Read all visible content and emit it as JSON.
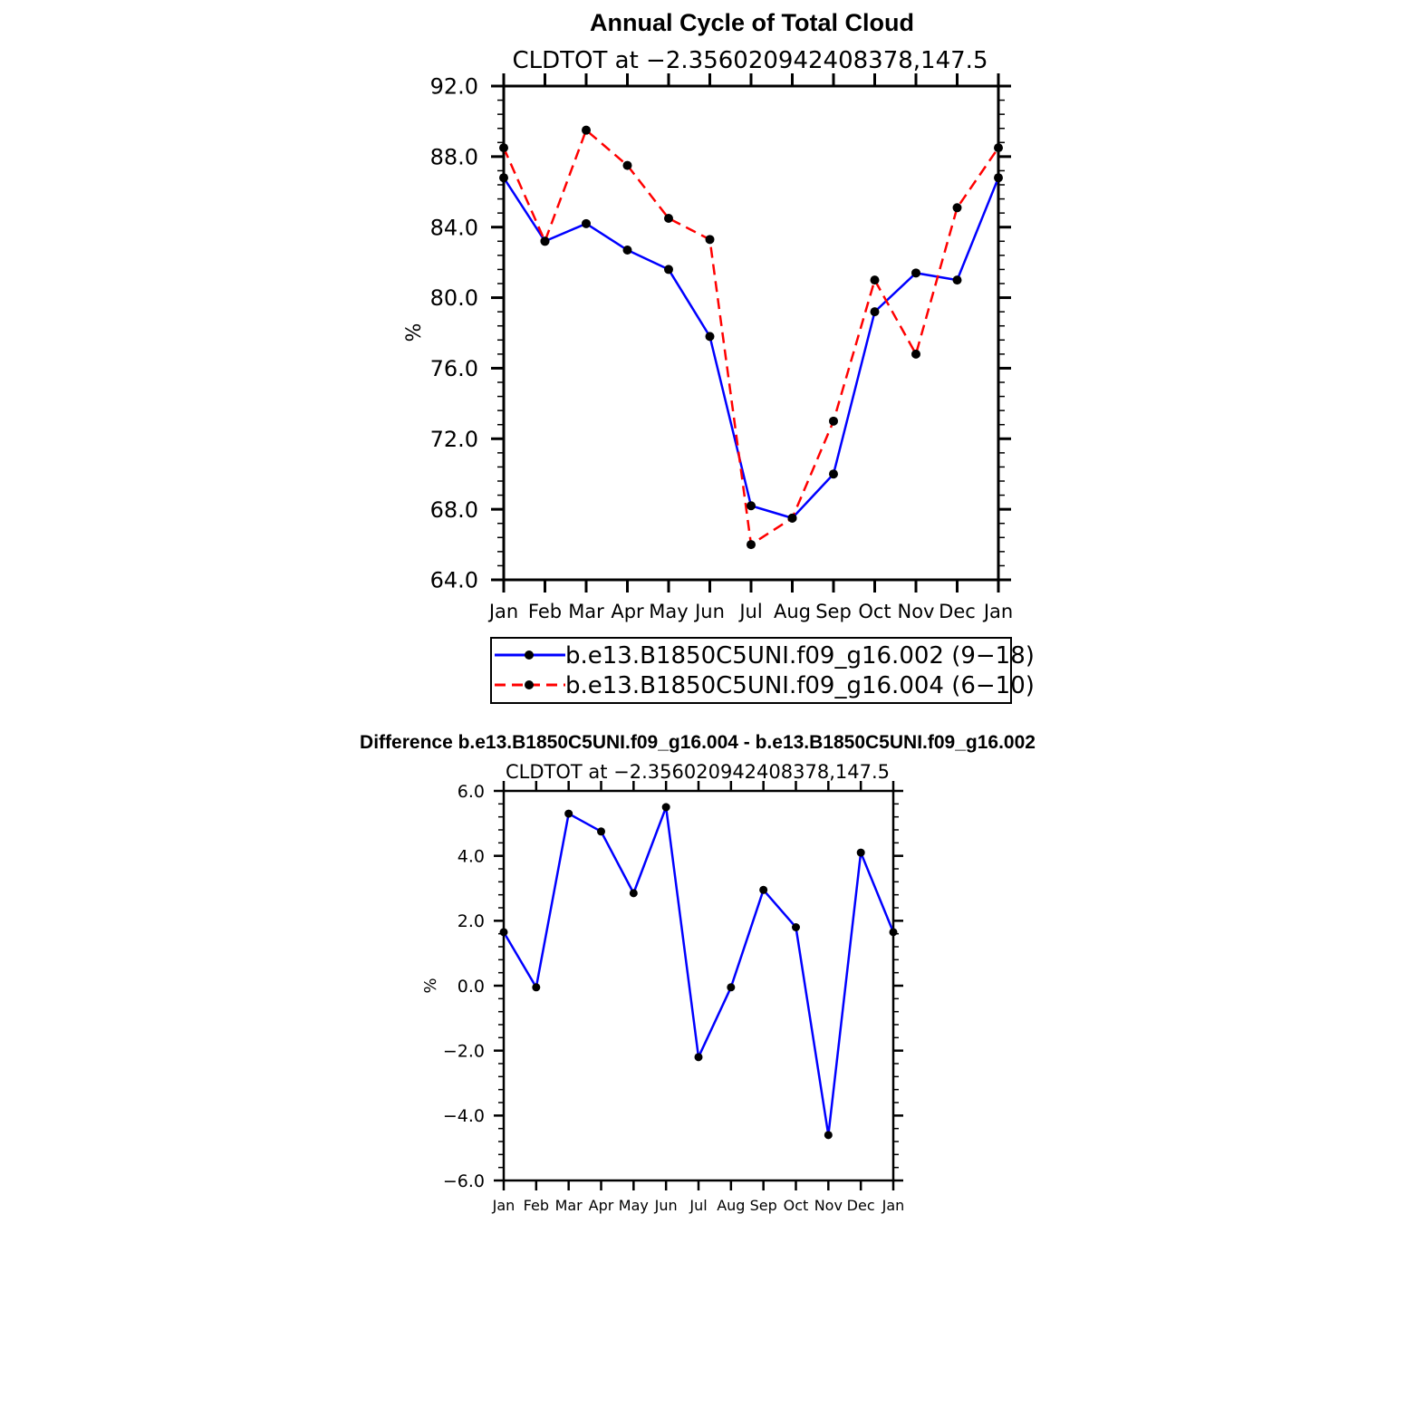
{
  "chart_data": [
    {
      "type": "line",
      "title": "Annual Cycle of Total Cloud",
      "subtitle": "CLDTOT at −2.356020942408378,147.5",
      "xlabel": "",
      "ylabel": "%",
      "categories": [
        "Jan",
        "Feb",
        "Mar",
        "Apr",
        "May",
        "Jun",
        "Jul",
        "Aug",
        "Sep",
        "Oct",
        "Nov",
        "Dec",
        "Jan"
      ],
      "ylim": [
        64.0,
        92.0
      ],
      "yticks": [
        "64.0",
        "68.0",
        "72.0",
        "76.0",
        "80.0",
        "84.0",
        "88.0",
        "92.0"
      ],
      "series": [
        {
          "name": "b.e13.B1850C5UNI.f09_g16.002 (9−18)",
          "color": "#0000ff",
          "dash": "solid",
          "values": [
            86.8,
            83.2,
            84.2,
            82.7,
            81.6,
            77.8,
            68.2,
            67.5,
            70.0,
            79.2,
            81.4,
            81.0,
            86.8
          ]
        },
        {
          "name": "b.e13.B1850C5UNI.f09_g16.004 (6−10)",
          "color": "#ff0000",
          "dash": "dashed",
          "values": [
            88.5,
            83.2,
            89.5,
            87.5,
            84.5,
            83.3,
            66.0,
            67.5,
            73.0,
            81.0,
            76.8,
            85.1,
            88.5
          ]
        }
      ],
      "legend": "below"
    },
    {
      "type": "line",
      "title": "Difference b.e13.B1850C5UNI.f09_g16.004 - b.e13.B1850C5UNI.f09_g16.002",
      "subtitle": "CLDTOT at −2.356020942408378,147.5",
      "xlabel": "",
      "ylabel": "%",
      "categories": [
        "Jan",
        "Feb",
        "Mar",
        "Apr",
        "May",
        "Jun",
        "Jul",
        "Aug",
        "Sep",
        "Oct",
        "Nov",
        "Dec",
        "Jan"
      ],
      "ylim": [
        -6.0,
        6.0
      ],
      "yticks": [
        "−6.0",
        "−4.0",
        "−2.0",
        "0.0",
        "2.0",
        "4.0",
        "6.0"
      ],
      "series": [
        {
          "name": "Difference",
          "color": "#0000ff",
          "dash": "solid",
          "values": [
            1.65,
            -0.05,
            5.3,
            4.75,
            2.85,
            5.5,
            -2.2,
            -0.05,
            2.95,
            1.8,
            -4.6,
            4.1,
            1.65
          ]
        }
      ]
    }
  ]
}
